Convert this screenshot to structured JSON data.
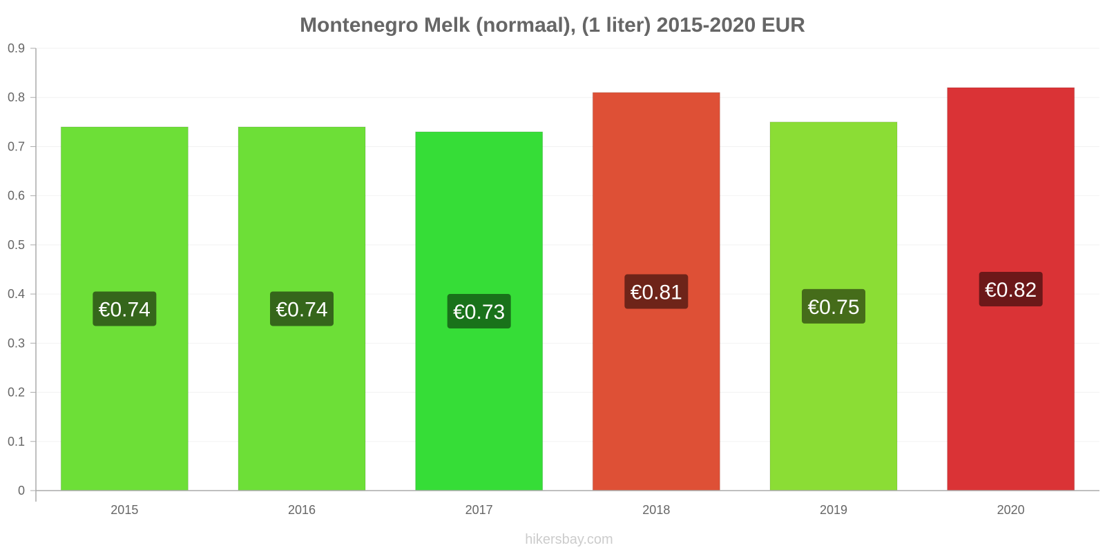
{
  "chart_data": {
    "type": "bar",
    "title": "Montenegro Melk (normaal), (1 liter) 2015-2020 EUR",
    "categories": [
      "2015",
      "2016",
      "2017",
      "2018",
      "2019",
      "2020"
    ],
    "values": [
      0.74,
      0.74,
      0.73,
      0.81,
      0.75,
      0.82
    ],
    "data_labels": [
      "€0.74",
      "€0.74",
      "€0.73",
      "€0.81",
      "€0.75",
      "€0.82"
    ],
    "bar_colors": [
      "#6ddf37",
      "#6ddf37",
      "#36dd37",
      "#de5036",
      "#8bdd35",
      "#da3336"
    ],
    "label_colors": [
      "#35661b",
      "#35661b",
      "#19721a",
      "#6e2419",
      "#456c1a",
      "#6c1819"
    ],
    "ylim": [
      0,
      0.9
    ],
    "yticks": [
      "0",
      "0.1",
      "0.2",
      "0.3",
      "0.4",
      "0.5",
      "0.6",
      "0.7",
      "0.8",
      "0.9"
    ],
    "grid": true,
    "xlabel": "",
    "ylabel": ""
  },
  "credit": "hikersbay.com"
}
